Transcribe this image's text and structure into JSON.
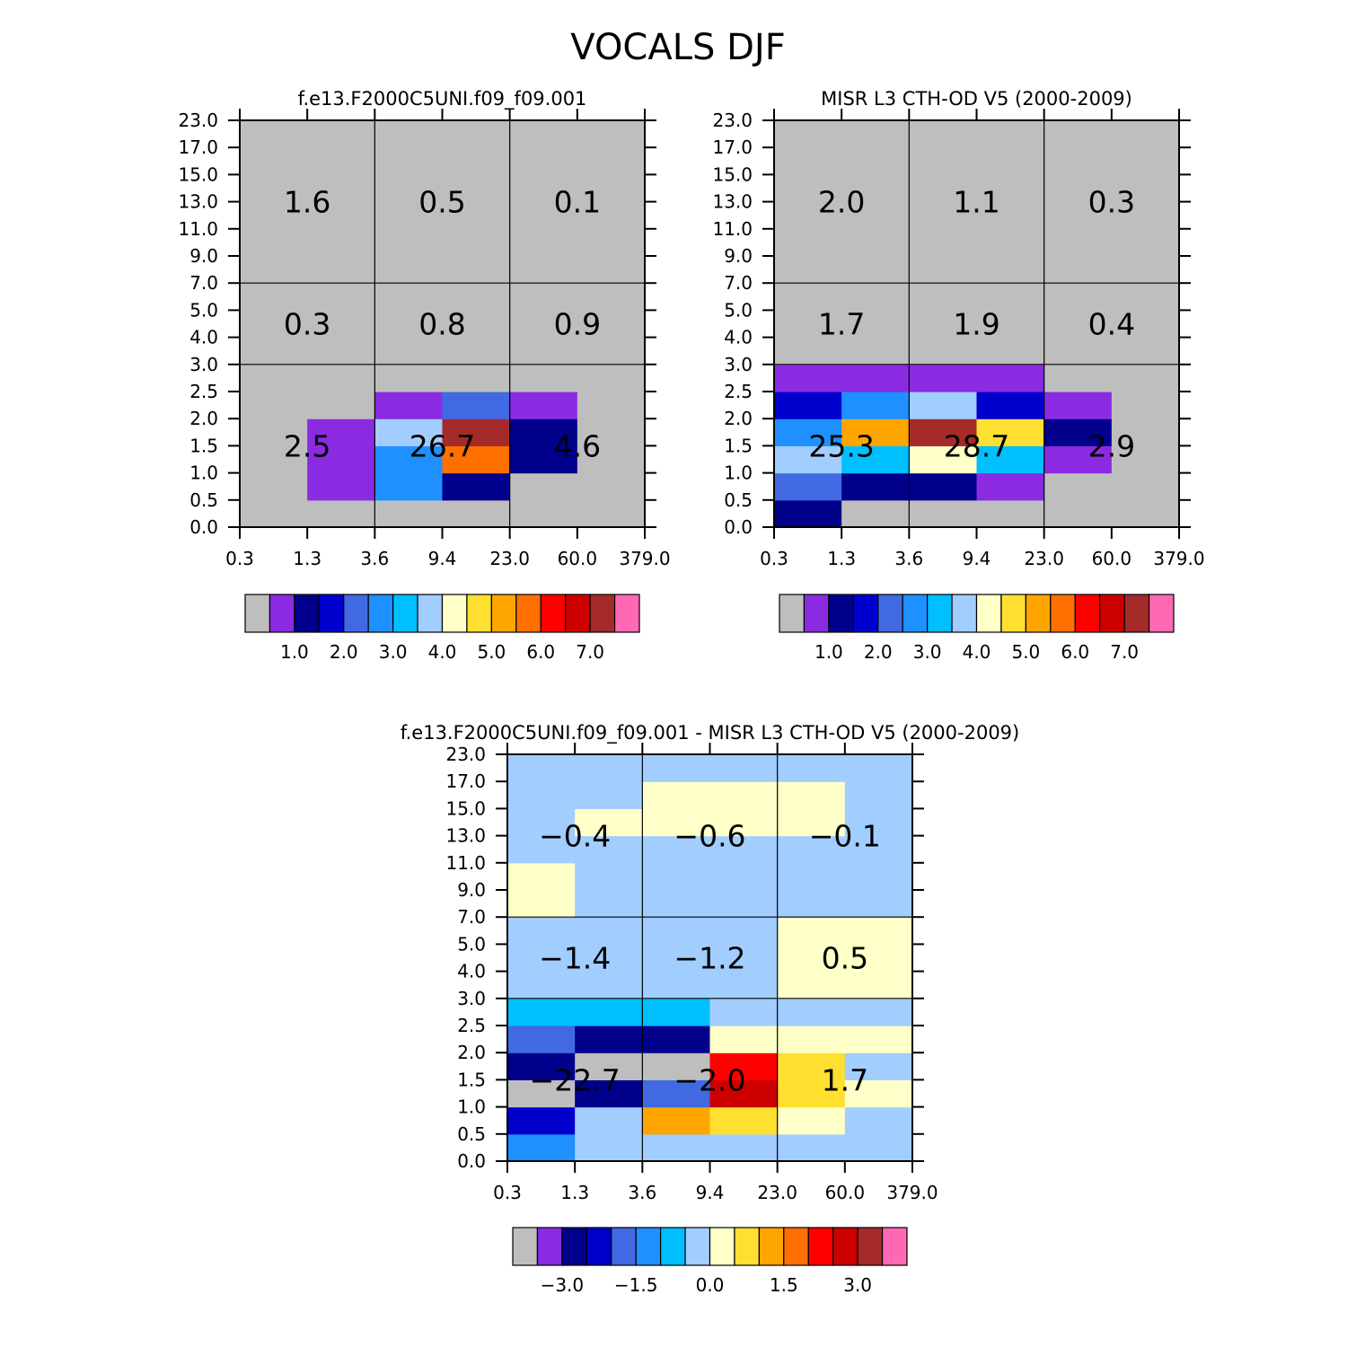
{
  "figure_title": "VOCALS DJF",
  "colors": {
    "panel_scale": [
      "#bebebe",
      "#8a2be2",
      "#00008b",
      "#0000cd",
      "#4169e1",
      "#1e90ff",
      "#00bfff",
      "#a2cdff",
      "#ffffc8",
      "#ffe030",
      "#ffa500",
      "#ff7000",
      "#ff0000",
      "#cd0000",
      "#a52a2a",
      "#ff69b4"
    ],
    "diff_scale": [
      "#bebebe",
      "#8a2be2",
      "#00008b",
      "#0000cd",
      "#4169e1",
      "#1e90ff",
      "#00bfff",
      "#a2cdff",
      "#ffffc8",
      "#ffe030",
      "#ffa500",
      "#ff7000",
      "#ff0000",
      "#cd0000",
      "#a52a2a",
      "#ff69b4"
    ]
  },
  "chart_data": [
    {
      "type": "heatmap",
      "title": "f.e13.F2000C5UNI.f09_f09.001",
      "x_ticks": [
        "0.3",
        "1.3",
        "3.6",
        "9.4",
        "23.0",
        "60.0",
        "379.0"
      ],
      "y_ticks": [
        "0.0",
        "0.5",
        "1.0",
        "1.5",
        "2.0",
        "2.5",
        "3.0",
        "4.0",
        "5.0",
        "7.0",
        "9.0",
        "11.0",
        "13.0",
        "15.0",
        "17.0",
        "23.0"
      ],
      "cells": [
        [
          0,
          0,
          0,
          0,
          0,
          0
        ],
        [
          0,
          1,
          5,
          2,
          0,
          0
        ],
        [
          0,
          1,
          5,
          11,
          2,
          0
        ],
        [
          0,
          1,
          7,
          14,
          2,
          0
        ],
        [
          0,
          0,
          1,
          4,
          1,
          0
        ],
        [
          0,
          0,
          0,
          0,
          0,
          0
        ],
        [
          0,
          0,
          0,
          0,
          0,
          0
        ],
        [
          0,
          0,
          0,
          0,
          0,
          0
        ],
        [
          0,
          0,
          0,
          0,
          0,
          0
        ],
        [
          0,
          0,
          0,
          0,
          0,
          0
        ],
        [
          0,
          0,
          0,
          0,
          0,
          0
        ],
        [
          0,
          0,
          0,
          0,
          0,
          0
        ],
        [
          0,
          0,
          0,
          0,
          0,
          0
        ],
        [
          0,
          0,
          0,
          0,
          0,
          0
        ],
        [
          0,
          0,
          0,
          0,
          0,
          0
        ]
      ],
      "sums": [
        {
          "label": "2.5",
          "col": 0,
          "row": 0
        },
        {
          "label": "26.7",
          "col": 1,
          "row": 0
        },
        {
          "label": "4.6",
          "col": 2,
          "row": 0
        },
        {
          "label": "0.3",
          "col": 0,
          "row": 1
        },
        {
          "label": "0.8",
          "col": 1,
          "row": 1
        },
        {
          "label": "0.9",
          "col": 2,
          "row": 1
        },
        {
          "label": "1.6",
          "col": 0,
          "row": 2
        },
        {
          "label": "0.5",
          "col": 1,
          "row": 2
        },
        {
          "label": "0.1",
          "col": 2,
          "row": 2
        }
      ],
      "colorbar_labels": [
        "1.0",
        "2.0",
        "3.0",
        "4.0",
        "5.0",
        "6.0",
        "7.0"
      ]
    },
    {
      "type": "heatmap",
      "title": "MISR L3 CTH-OD V5 (2000-2009)",
      "x_ticks": [
        "0.3",
        "1.3",
        "3.6",
        "9.4",
        "23.0",
        "60.0",
        "379.0"
      ],
      "y_ticks": [
        "0.0",
        "0.5",
        "1.0",
        "1.5",
        "2.0",
        "2.5",
        "3.0",
        "4.0",
        "5.0",
        "7.0",
        "9.0",
        "11.0",
        "13.0",
        "15.0",
        "17.0",
        "23.0"
      ],
      "cells": [
        [
          2,
          0,
          0,
          0,
          0,
          0
        ],
        [
          4,
          2,
          2,
          1,
          0,
          0
        ],
        [
          7,
          6,
          8,
          6,
          1,
          0
        ],
        [
          5,
          10,
          14,
          9,
          2,
          0
        ],
        [
          3,
          5,
          7,
          3,
          1,
          0
        ],
        [
          1,
          1,
          1,
          1,
          0,
          0
        ],
        [
          0,
          0,
          0,
          0,
          0,
          0
        ],
        [
          0,
          0,
          0,
          0,
          0,
          0
        ],
        [
          0,
          0,
          0,
          0,
          0,
          0
        ],
        [
          0,
          0,
          0,
          0,
          0,
          0
        ],
        [
          0,
          0,
          0,
          0,
          0,
          0
        ],
        [
          0,
          0,
          0,
          0,
          0,
          0
        ],
        [
          0,
          0,
          0,
          0,
          0,
          0
        ],
        [
          0,
          0,
          0,
          0,
          0,
          0
        ],
        [
          0,
          0,
          0,
          0,
          0,
          0
        ]
      ],
      "sums": [
        {
          "label": "25.3",
          "col": 0,
          "row": 0
        },
        {
          "label": "28.7",
          "col": 1,
          "row": 0
        },
        {
          "label": "2.9",
          "col": 2,
          "row": 0
        },
        {
          "label": "1.7",
          "col": 0,
          "row": 1
        },
        {
          "label": "1.9",
          "col": 1,
          "row": 1
        },
        {
          "label": "0.4",
          "col": 2,
          "row": 1
        },
        {
          "label": "2.0",
          "col": 0,
          "row": 2
        },
        {
          "label": "1.1",
          "col": 1,
          "row": 2
        },
        {
          "label": "0.3",
          "col": 2,
          "row": 2
        }
      ],
      "colorbar_labels": [
        "1.0",
        "2.0",
        "3.0",
        "4.0",
        "5.0",
        "6.0",
        "7.0"
      ]
    },
    {
      "type": "heatmap",
      "title": "f.e13.F2000C5UNI.f09_f09.001 - MISR L3 CTH-OD V5 (2000-2009)",
      "x_ticks": [
        "0.3",
        "1.3",
        "3.6",
        "9.4",
        "23.0",
        "60.0",
        "379.0"
      ],
      "y_ticks": [
        "0.0",
        "0.5",
        "1.0",
        "1.5",
        "2.0",
        "2.5",
        "3.0",
        "4.0",
        "5.0",
        "7.0",
        "9.0",
        "11.0",
        "13.0",
        "15.0",
        "17.0",
        "23.0"
      ],
      "cells": [
        [
          5,
          7,
          7,
          7,
          7,
          7
        ],
        [
          3,
          7,
          10,
          9,
          8,
          7
        ],
        [
          0,
          2,
          4,
          13,
          9,
          8
        ],
        [
          2,
          0,
          0,
          12,
          9,
          7
        ],
        [
          4,
          2,
          2,
          8,
          8,
          8
        ],
        [
          6,
          6,
          6,
          7,
          7,
          7
        ],
        [
          7,
          7,
          7,
          7,
          8,
          8
        ],
        [
          7,
          7,
          7,
          7,
          8,
          8
        ],
        [
          7,
          7,
          7,
          7,
          8,
          8
        ],
        [
          8,
          7,
          7,
          7,
          7,
          7
        ],
        [
          8,
          7,
          7,
          7,
          7,
          7
        ],
        [
          7,
          7,
          7,
          7,
          7,
          7
        ],
        [
          7,
          8,
          8,
          8,
          8,
          7
        ],
        [
          7,
          7,
          8,
          8,
          8,
          7
        ],
        [
          7,
          7,
          7,
          7,
          7,
          7
        ]
      ],
      "sums": [
        {
          "label": "−22.7",
          "col": 0,
          "row": 0
        },
        {
          "label": "−2.0",
          "col": 1,
          "row": 0
        },
        {
          "label": "1.7",
          "col": 2,
          "row": 0
        },
        {
          "label": "−1.4",
          "col": 0,
          "row": 1
        },
        {
          "label": "−1.2",
          "col": 1,
          "row": 1
        },
        {
          "label": "0.5",
          "col": 2,
          "row": 1
        },
        {
          "label": "−0.4",
          "col": 0,
          "row": 2
        },
        {
          "label": "−0.6",
          "col": 1,
          "row": 2
        },
        {
          "label": "−0.1",
          "col": 2,
          "row": 2
        }
      ],
      "colorbar_labels": [
        "−3.0",
        "−1.5",
        "0.0",
        "1.5",
        "3.0"
      ]
    }
  ]
}
